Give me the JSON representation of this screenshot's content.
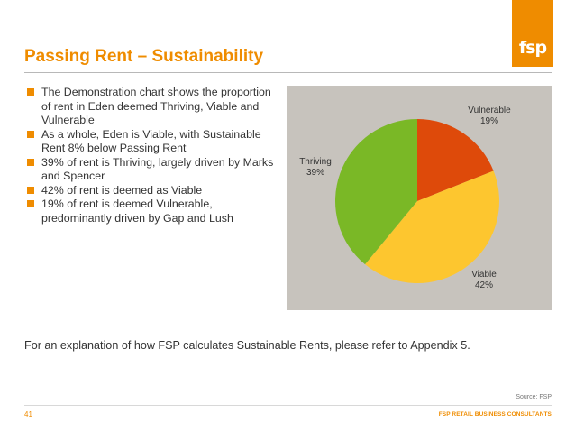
{
  "logo": {
    "text": "fsp",
    "color": "#ef8c00"
  },
  "title": "Passing Rent – Sustainability",
  "bullets": [
    "The Demonstration chart shows the proportion of rent in Eden deemed Thriving, Viable and Vulnerable",
    "As a whole, Eden is Viable, with Sustainable Rent 8% below Passing Rent",
    "39% of rent is Thriving, largely driven by Marks and Spencer",
    "42% of rent is deemed as Viable",
    "19% of rent is deemed Vulnerable, predominantly driven by Gap and Lush"
  ],
  "chart_data": {
    "type": "pie",
    "slices": [
      {
        "label": "Vulnerable",
        "value": 19,
        "value_label": "19%",
        "color": "#de4a0a"
      },
      {
        "label": "Viable",
        "value": 42,
        "value_label": "42%",
        "color": "#fdc62f"
      },
      {
        "label": "Thriving",
        "value": 39,
        "value_label": "39%",
        "color": "#7ab826"
      }
    ],
    "background": "#c7c3bd"
  },
  "footer_note": "For an explanation of how FSP calculates Sustainable Rents, please refer to Appendix 5.",
  "source": "Source: FSP",
  "page_number": "41",
  "company": "FSP RETAIL BUSINESS CONSULTANTS"
}
